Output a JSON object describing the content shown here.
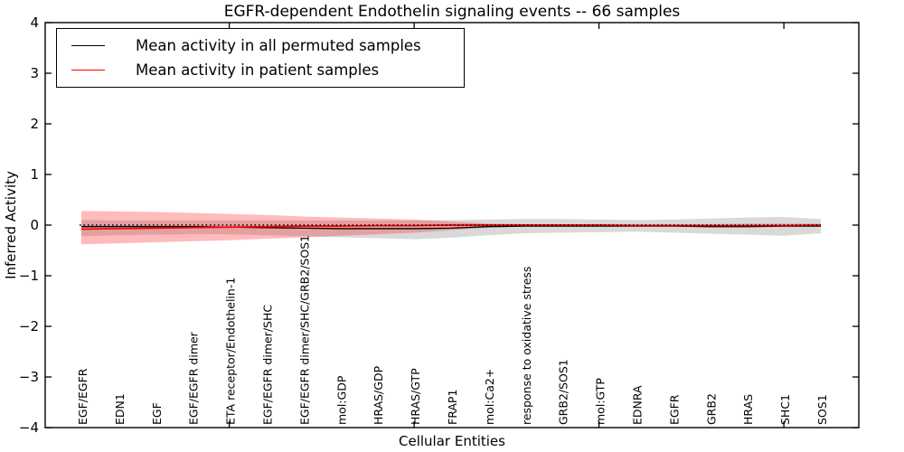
{
  "figure": {
    "title": "EGFR-dependent Endothelin signaling events -- 66 samples"
  },
  "axes": {
    "ylabel": "Inferred Activity",
    "xlabel": "Cellular Entities"
  },
  "legend": {
    "position": "upper-left",
    "items": [
      {
        "label": "Mean activity in all permuted samples",
        "color": "#000000"
      },
      {
        "label": "Mean activity in patient samples",
        "color": "#ff0000"
      }
    ]
  },
  "chart_data": {
    "type": "line",
    "title": "EGFR-dependent Endothelin signaling events -- 66 samples",
    "xlabel": "Cellular Entities",
    "ylabel": "Inferred Activity",
    "ylim": [
      -4,
      4
    ],
    "yticks": {
      "values": [
        4,
        3,
        2,
        1,
        0,
        -1,
        -2,
        -3,
        -4
      ],
      "labels": [
        "4",
        "3",
        "2",
        "1",
        "0",
        "−1",
        "−2",
        "−3",
        "−4"
      ]
    },
    "grid": false,
    "categories": [
      "EGF/EGFR",
      "EDN1",
      "EGF",
      "EGF/EGFR dimer",
      "ETA receptor/Endothelin-1",
      "EGF/EGFR dimer/SHC",
      "EGF/EGFR dimer/SHC/GRB2/SOS1",
      "mol:GDP",
      "HRAS/GDP",
      "HRAS/GTP",
      "FRAP1",
      "mol:Ca2+",
      "response to oxidative stress",
      "GRB2/SOS1",
      "mol:GTP",
      "EDNRA",
      "EGFR",
      "GRB2",
      "HRAS",
      "SHC1",
      "SOS1"
    ],
    "series": [
      {
        "name": "Mean activity in all permuted samples",
        "color": "#000000",
        "band_color": "rgba(120,120,120,0.28)",
        "values": [
          -0.03,
          -0.03,
          -0.03,
          -0.03,
          -0.04,
          -0.05,
          -0.06,
          -0.07,
          -0.07,
          -0.07,
          -0.06,
          -0.03,
          -0.02,
          -0.02,
          -0.02,
          -0.02,
          -0.02,
          -0.03,
          -0.03,
          -0.02,
          -0.02
        ],
        "band_upper": [
          0.1,
          0.09,
          0.09,
          0.09,
          0.09,
          0.09,
          0.09,
          0.09,
          0.09,
          0.09,
          0.1,
          0.11,
          0.12,
          0.12,
          0.11,
          0.1,
          0.11,
          0.13,
          0.15,
          0.16,
          0.12
        ],
        "band_lower": [
          -0.22,
          -0.2,
          -0.19,
          -0.18,
          -0.18,
          -0.2,
          -0.22,
          -0.24,
          -0.26,
          -0.28,
          -0.25,
          -0.2,
          -0.16,
          -0.15,
          -0.14,
          -0.13,
          -0.15,
          -0.17,
          -0.19,
          -0.21,
          -0.16
        ]
      },
      {
        "name": "Mean activity in patient samples",
        "color": "#ff0000",
        "band_color": "rgba(255,30,30,0.30)",
        "values": [
          -0.08,
          -0.07,
          -0.06,
          -0.05,
          -0.04,
          -0.03,
          -0.02,
          -0.02,
          -0.01,
          -0.01,
          0.0,
          0.0,
          0.0,
          0.0,
          0.0,
          -0.01,
          -0.01,
          -0.01,
          -0.01,
          -0.01,
          0.0
        ],
        "band_upper": [
          0.28,
          0.27,
          0.26,
          0.24,
          0.22,
          0.2,
          0.17,
          0.15,
          0.13,
          0.11,
          0.07,
          0.03,
          0.02,
          0.02,
          0.02,
          0.02,
          0.02,
          0.02,
          0.03,
          0.03,
          0.03
        ],
        "band_lower": [
          -0.38,
          -0.36,
          -0.34,
          -0.32,
          -0.3,
          -0.27,
          -0.24,
          -0.21,
          -0.18,
          -0.15,
          -0.1,
          -0.05,
          -0.03,
          -0.03,
          -0.03,
          -0.03,
          -0.03,
          -0.04,
          -0.04,
          -0.04,
          -0.03
        ]
      }
    ],
    "reference_line": {
      "y": 0,
      "style": "dotted",
      "color": "#000000"
    },
    "x_major_tick_indices": [
      4,
      9,
      14,
      19
    ],
    "legend_position": "upper left"
  }
}
